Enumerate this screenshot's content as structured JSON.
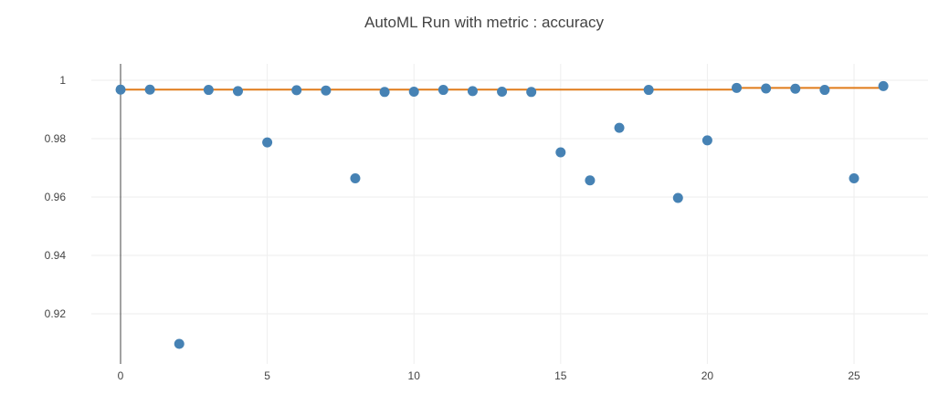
{
  "colors": {
    "marker": "#4682b4",
    "best_line": "#e07b1a",
    "grid": "#eeeeee",
    "zero_line": "#444444",
    "text": "#444444"
  },
  "chart_data": {
    "type": "scatter",
    "title": "AutoML Run with metric : accuracy",
    "xlabel": "",
    "ylabel": "",
    "xlim": [
      -1,
      27.5
    ],
    "ylim": [
      0.9,
      1.005
    ],
    "grid": true,
    "x_ticks": [
      0,
      5,
      10,
      15,
      20,
      25
    ],
    "x_tick_labels": [
      "0",
      "5",
      "10",
      "15",
      "20",
      "25"
    ],
    "y_ticks": [
      0.92,
      0.94,
      0.96,
      0.98,
      1
    ],
    "y_tick_labels": [
      "0.92",
      "0.94",
      "0.96",
      "0.98",
      "1"
    ],
    "series": [
      {
        "type": "scatter",
        "x": [
          0,
          1,
          2,
          3,
          4,
          5,
          6,
          7,
          8,
          9,
          10,
          11,
          12,
          13,
          14,
          15,
          16,
          17,
          18,
          19,
          20,
          21,
          22,
          23,
          24,
          25,
          26
        ],
        "y": [
          0.9968,
          0.9968,
          0.9097,
          0.9967,
          0.9963,
          0.9787,
          0.9966,
          0.9965,
          0.9664,
          0.996,
          0.9961,
          0.9967,
          0.9963,
          0.9961,
          0.996,
          0.9753,
          0.9657,
          0.9837,
          0.9967,
          0.9597,
          0.9794,
          0.9974,
          0.9972,
          0.9971,
          0.9967,
          0.9664,
          0.998
        ]
      },
      {
        "type": "line",
        "step": true,
        "x": [
          0,
          21,
          26
        ],
        "y": [
          0.9968,
          0.9974,
          0.998
        ]
      }
    ]
  }
}
